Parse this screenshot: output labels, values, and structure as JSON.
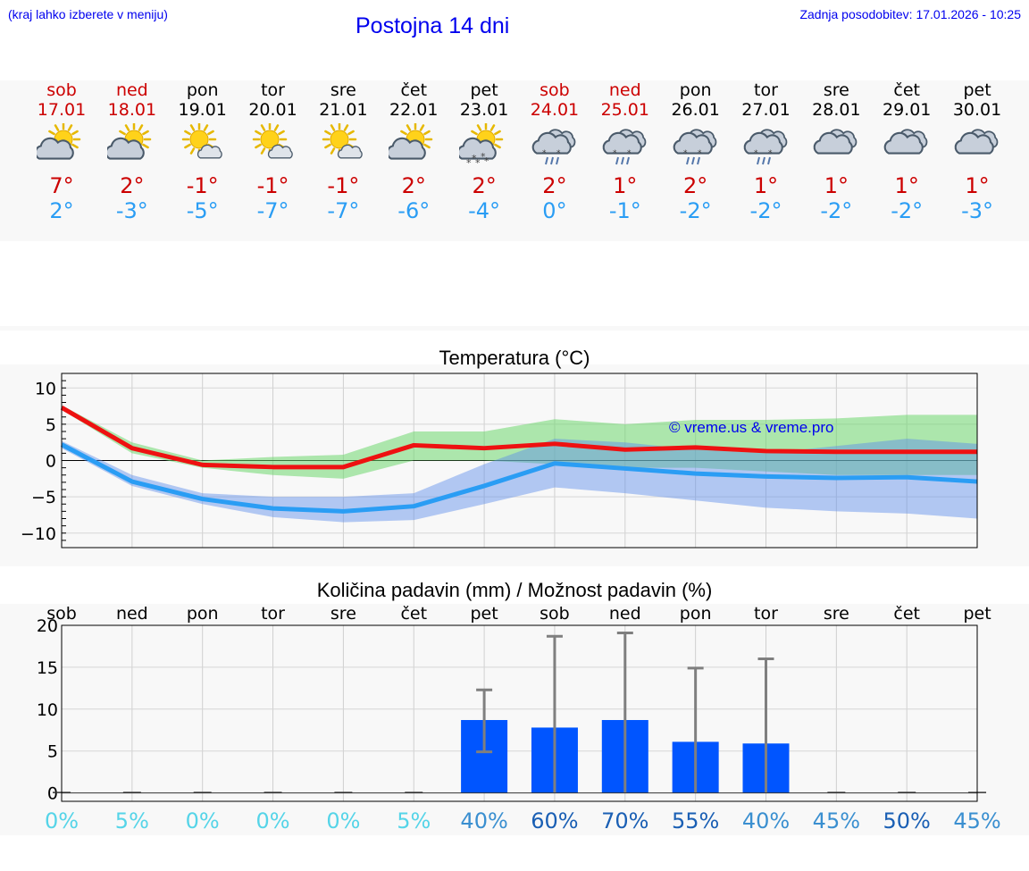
{
  "header": {
    "hint": "(kraj lahko izberete v meniju)",
    "title": "Postojna 14 dni",
    "updated": "Zadnja posodobitev: 17.01.2026 - 10:25"
  },
  "colors": {
    "max": "#cc0000",
    "min": "#2a9df4",
    "bar": "#0055ff",
    "link": "#0000ee"
  },
  "days": [
    {
      "name": "sob",
      "date": "17.01",
      "icon": "sun-cloud-icon",
      "max": "7°",
      "min": "2°",
      "weekend": true
    },
    {
      "name": "ned",
      "date": "18.01",
      "icon": "sun-cloud-icon",
      "max": "2°",
      "min": "-3°",
      "weekend": true
    },
    {
      "name": "pon",
      "date": "19.01",
      "icon": "sun-small-cloud-icon",
      "max": "-1°",
      "min": "-5°",
      "weekend": false
    },
    {
      "name": "tor",
      "date": "20.01",
      "icon": "sun-small-cloud-icon",
      "max": "-1°",
      "min": "-7°",
      "weekend": false
    },
    {
      "name": "sre",
      "date": "21.01",
      "icon": "sun-small-cloud-icon",
      "max": "-1°",
      "min": "-7°",
      "weekend": false
    },
    {
      "name": "čet",
      "date": "22.01",
      "icon": "sun-cloud-icon",
      "max": "2°",
      "min": "-6°",
      "weekend": false
    },
    {
      "name": "pet",
      "date": "23.01",
      "icon": "sun-cloud-snow-icon",
      "max": "2°",
      "min": "-4°",
      "weekend": false
    },
    {
      "name": "sob",
      "date": "24.01",
      "icon": "cloud-sleet-icon",
      "max": "2°",
      "min": "0°",
      "weekend": true
    },
    {
      "name": "ned",
      "date": "25.01",
      "icon": "cloud-sleet-icon",
      "max": "1°",
      "min": "-1°",
      "weekend": true
    },
    {
      "name": "pon",
      "date": "26.01",
      "icon": "cloud-sleet-icon",
      "max": "2°",
      "min": "-2°",
      "weekend": false
    },
    {
      "name": "tor",
      "date": "27.01",
      "icon": "cloud-sleet-icon",
      "max": "1°",
      "min": "-2°",
      "weekend": false
    },
    {
      "name": "sre",
      "date": "28.01",
      "icon": "cloud-icon",
      "max": "1°",
      "min": "-2°",
      "weekend": false
    },
    {
      "name": "čet",
      "date": "29.01",
      "icon": "cloud-icon",
      "max": "1°",
      "min": "-2°",
      "weekend": false
    },
    {
      "name": "pet",
      "date": "30.01",
      "icon": "cloud-icon",
      "max": "1°",
      "min": "-3°",
      "weekend": false
    }
  ],
  "chart_data": [
    {
      "type": "line",
      "title": "Temperatura (°C)",
      "watermark": "© vreme.us & vreme.pro",
      "x": [
        0,
        1,
        2,
        3,
        4,
        5,
        6,
        7,
        8,
        9,
        10,
        11,
        12,
        13
      ],
      "ylim": [
        -12,
        12
      ],
      "yticks": [
        10,
        5,
        0,
        -5,
        -10
      ],
      "ytick_labels": [
        "10",
        "5",
        "0",
        "−5",
        "−10"
      ],
      "grid": true,
      "series": [
        {
          "name": "max",
          "color": "#ee1111",
          "values": [
            7.3,
            1.7,
            -0.6,
            -0.9,
            -0.9,
            2.1,
            1.7,
            2.3,
            1.5,
            1.8,
            1.3,
            1.2,
            1.2,
            1.2
          ],
          "band_low": [
            7.0,
            1.0,
            -1.0,
            -2.0,
            -2.5,
            0.0,
            0.0,
            -0.5,
            -1.0,
            -1.0,
            -1.5,
            -2.0,
            -2.0,
            -2.0
          ],
          "band_high": [
            7.6,
            2.5,
            0.0,
            0.5,
            0.8,
            4.0,
            4.0,
            5.7,
            5.0,
            5.6,
            5.6,
            5.8,
            6.3,
            6.3
          ]
        },
        {
          "name": "min",
          "color": "#2a9df4",
          "values": [
            2.2,
            -2.9,
            -5.3,
            -6.6,
            -7.0,
            -6.3,
            -3.5,
            -0.4,
            -1.1,
            -1.8,
            -2.2,
            -2.4,
            -2.3,
            -2.9
          ],
          "band_low": [
            1.7,
            -3.5,
            -6.0,
            -7.8,
            -8.5,
            -8.2,
            -6.0,
            -3.7,
            -4.5,
            -5.5,
            -6.5,
            -7.0,
            -7.3,
            -8.0
          ],
          "band_high": [
            2.7,
            -2.0,
            -4.5,
            -5.0,
            -5.0,
            -4.5,
            -0.5,
            3.0,
            2.5,
            1.5,
            1.0,
            2.0,
            3.0,
            2.3
          ]
        }
      ]
    },
    {
      "type": "bar",
      "title": "Količina padavin (mm) / Možnost padavin (%)",
      "categories": [
        "sob",
        "ned",
        "pon",
        "tor",
        "sre",
        "čet",
        "pet",
        "sob",
        "ned",
        "pon",
        "tor",
        "sre",
        "čet",
        "pet"
      ],
      "values": [
        0,
        0,
        0,
        0,
        0,
        0,
        8.7,
        7.8,
        8.7,
        6.1,
        5.9,
        0,
        0,
        0
      ],
      "error_low": [
        0,
        0,
        0,
        0,
        0,
        0,
        4.9,
        0,
        0,
        0,
        0,
        0,
        0,
        0
      ],
      "error_high": [
        0,
        0,
        0,
        0,
        0,
        0,
        12.3,
        18.7,
        19.1,
        14.9,
        16.0,
        0,
        0,
        0
      ],
      "probability": [
        "0%",
        "5%",
        "0%",
        "0%",
        "0%",
        "5%",
        "40%",
        "60%",
        "70%",
        "55%",
        "40%",
        "45%",
        "50%",
        "45%"
      ],
      "ylim": [
        -1,
        20
      ],
      "yticks": [
        20,
        15,
        10,
        5,
        0
      ],
      "ytick_labels": [
        "20",
        "15",
        "10",
        "5",
        "0"
      ],
      "grid": true
    }
  ]
}
